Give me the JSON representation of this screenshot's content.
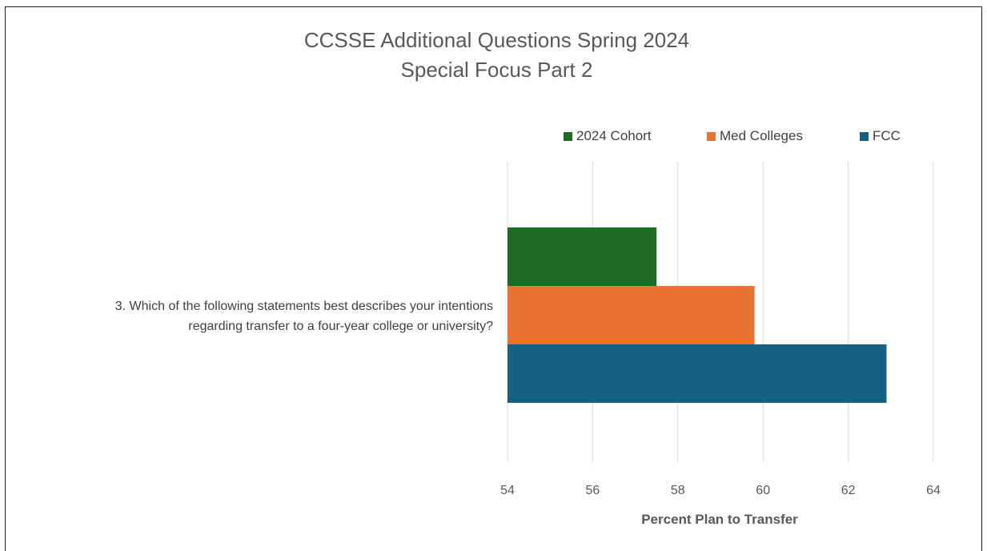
{
  "chart_data": {
    "type": "bar",
    "orientation": "horizontal",
    "title": [
      "CCSSE Additional Questions Spring 2024",
      "Special Focus Part 2"
    ],
    "categories": [
      "3. Which of the following statements best describes your intentions regarding transfer to a four-year college or university?"
    ],
    "category_label_lines": [
      "3. Which of the following statements best describes your intentions",
      "regarding transfer to a four-year college or university?"
    ],
    "series": [
      {
        "name": "2024 Cohort",
        "values": [
          57.5
        ],
        "color": "#1e6b25"
      },
      {
        "name": "Med Colleges",
        "values": [
          59.8
        ],
        "color": "#e97432"
      },
      {
        "name": "FCC",
        "values": [
          62.9
        ],
        "color": "#176082"
      }
    ],
    "xlim": [
      54,
      64
    ],
    "xticks": [
      54,
      56,
      58,
      60,
      62,
      64
    ],
    "xlabel": "Percent Plan to Transfer",
    "ylabel": "",
    "grid": "vertical",
    "legend_position": "top"
  }
}
